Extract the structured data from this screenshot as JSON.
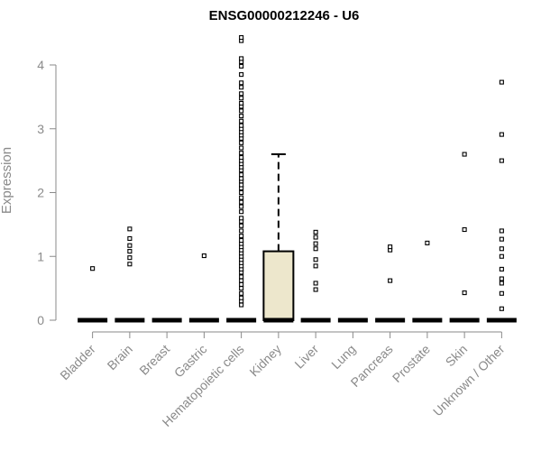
{
  "chart_data": {
    "type": "box",
    "title": "ENSG00000212246 - U6",
    "xlabel": "",
    "ylabel": "Expression",
    "ylim": [
      0,
      4.4
    ],
    "yticks": [
      0,
      1,
      2,
      3,
      4
    ],
    "ytick_labels": [
      "0",
      "1",
      "2",
      "3",
      "4"
    ],
    "grid": false,
    "box_fill": "#ede7cc",
    "categories": [
      "Bladder",
      "Brain",
      "Breast",
      "Gastric",
      "Hematopoietic cells",
      "Kidney",
      "Liver",
      "Lung",
      "Pancreas",
      "Prostate",
      "Skin",
      "Unknown / Other"
    ],
    "boxes": [
      {
        "category": "Bladder",
        "q1": 0,
        "median": 0,
        "q3": 0,
        "whisker_low": 0,
        "whisker_high": 0,
        "outliers": [
          0.81
        ]
      },
      {
        "category": "Brain",
        "q1": 0,
        "median": 0,
        "q3": 0,
        "whisker_low": 0,
        "whisker_high": 0,
        "outliers": [
          0.88,
          0.98,
          1.08,
          1.17,
          1.28,
          1.43
        ]
      },
      {
        "category": "Breast",
        "q1": 0,
        "median": 0,
        "q3": 0,
        "whisker_low": 0,
        "whisker_high": 0,
        "outliers": []
      },
      {
        "category": "Gastric",
        "q1": 0,
        "median": 0,
        "q3": 0,
        "whisker_low": 0,
        "whisker_high": 0,
        "outliers": [
          1.01
        ]
      },
      {
        "category": "Hematopoietic cells",
        "q1": 0,
        "median": 0,
        "q3": 0,
        "whisker_low": 0,
        "whisker_high": 0,
        "outliers": [
          0.24,
          0.3,
          0.35,
          0.42,
          0.5,
          0.56,
          0.62,
          0.68,
          0.75,
          0.8,
          0.85,
          0.9,
          0.95,
          1.0,
          1.05,
          1.1,
          1.15,
          1.2,
          1.25,
          1.32,
          1.4,
          1.48,
          1.55,
          1.6,
          1.7,
          1.78,
          1.85,
          1.92,
          2.0,
          2.07,
          2.12,
          2.18,
          2.22,
          2.28,
          2.35,
          2.4,
          2.45,
          2.5,
          2.55,
          2.62,
          2.7,
          2.78,
          2.85,
          2.9,
          2.95,
          3.0,
          3.05,
          3.12,
          3.2,
          3.28,
          3.35,
          3.4,
          3.48,
          3.55,
          3.65,
          3.72,
          3.85,
          3.98,
          4.05,
          4.1,
          4.38,
          4.43
        ]
      },
      {
        "category": "Kidney",
        "q1": 0,
        "median": 0,
        "q3": 1.08,
        "whisker_low": 0,
        "whisker_high": 2.6,
        "outliers": []
      },
      {
        "category": "Liver",
        "q1": 0,
        "median": 0,
        "q3": 0,
        "whisker_low": 0,
        "whisker_high": 0,
        "outliers": [
          0.48,
          0.58,
          0.85,
          0.95,
          1.12,
          1.2,
          1.3,
          1.38
        ]
      },
      {
        "category": "Lung",
        "q1": 0,
        "median": 0,
        "q3": 0,
        "whisker_low": 0,
        "whisker_high": 0,
        "outliers": []
      },
      {
        "category": "Pancreas",
        "q1": 0,
        "median": 0,
        "q3": 0,
        "whisker_low": 0,
        "whisker_high": 0,
        "outliers": [
          0.62,
          1.1,
          1.15
        ]
      },
      {
        "category": "Prostate",
        "q1": 0,
        "median": 0,
        "q3": 0,
        "whisker_low": 0,
        "whisker_high": 0,
        "outliers": [
          1.21
        ]
      },
      {
        "category": "Skin",
        "q1": 0,
        "median": 0,
        "q3": 0,
        "whisker_low": 0,
        "whisker_high": 0,
        "outliers": [
          0.43,
          1.42,
          2.6
        ]
      },
      {
        "category": "Unknown / Other",
        "q1": 0,
        "median": 0,
        "q3": 0,
        "whisker_low": 0,
        "whisker_high": 0,
        "outliers": [
          0.18,
          0.42,
          0.58,
          0.65,
          0.8,
          1.0,
          1.12,
          1.27,
          1.4,
          2.5,
          2.91,
          3.73
        ]
      }
    ]
  }
}
